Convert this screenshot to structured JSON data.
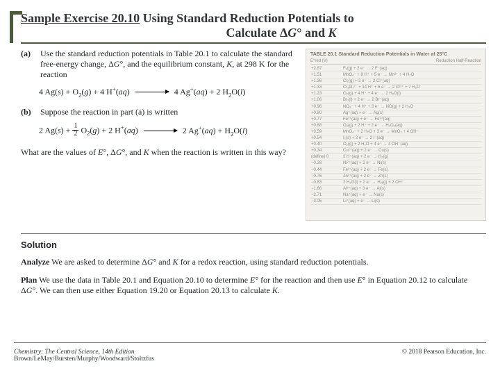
{
  "colors": {
    "accent_green": "#4a5a3a",
    "text": "#1e232a",
    "table_bg": "#f2f1ee",
    "table_border": "#d7d4cc",
    "rule": "#6d6d6d"
  },
  "title": {
    "prefix": "Sample Exercise 20.10",
    "rest_line1": " Using Standard Reduction Potentials to",
    "line2": "Calculate ΔG° and K"
  },
  "part_a": {
    "label": "(a)",
    "text": "Use the standard reduction potentials in Table 20.1 to calculate the standard free-energy change, ΔG°, and the equilibrium constant, K, at 298 K for the reaction"
  },
  "eqn_a": {
    "lhs": "4 Ag(s) + O₂(g) + 4 H⁺(aq)",
    "rhs": "4 Ag⁺(aq) + 2 H₂O(l)"
  },
  "part_b": {
    "label": "(b)",
    "text": "Suppose the reaction in part (a) is written"
  },
  "eqn_b": {
    "lhs_before_frac": "2 Ag(s) + ",
    "frac_num": "1",
    "frac_den": "2",
    "lhs_after_frac": " O₂(g) + 2 H⁺(aq)",
    "rhs": "2 Ag⁺(aq) + H₂O(l)"
  },
  "question_tail": "What are the values of E°, ΔG°, and K when the reaction is written in this way?",
  "solution": {
    "heading": "Solution",
    "analyze_label": "Analyze",
    "analyze_text": " We are asked to determine ΔG° and K for a redox reaction, using standard reduction potentials.",
    "plan_label": "Plan",
    "plan_text": " We use the data in Table 20.1 and Equation 20.10 to determine E° for the reaction and then use E° in Equation 20.12 to calculate ΔG°. We can then use either Equation 19.20 or Equation 20.13 to calculate K."
  },
  "table": {
    "caption": "TABLE 20.1   Standard Reduction Potentials in Water at 25°C",
    "col1": "E°red (V)",
    "col2": "Reduction Half-Reaction",
    "rows": [
      [
        "+2.87",
        "F₂(g) + 2 e⁻ → 2 F⁻(aq)"
      ],
      [
        "+1.51",
        "MnO₄⁻ + 8 H⁺ + 5 e⁻ → Mn²⁺ + 4 H₂O"
      ],
      [
        "+1.36",
        "Cl₂(g) + 2 e⁻ → 2 Cl⁻(aq)"
      ],
      [
        "+1.33",
        "Cr₂O₇²⁻ + 14 H⁺ + 6 e⁻ → 2 Cr³⁺ + 7 H₂O"
      ],
      [
        "+1.23",
        "O₂(g) + 4 H⁺ + 4 e⁻ → 2 H₂O(l)"
      ],
      [
        "+1.06",
        "Br₂(l) + 2 e⁻ → 2 Br⁻(aq)"
      ],
      [
        "+0.96",
        "NO₃⁻ + 4 H⁺ + 3 e⁻ → NO(g) + 2 H₂O"
      ],
      [
        "+0.80",
        "Ag⁺(aq) + e⁻ → Ag(s)"
      ],
      [
        "+0.77",
        "Fe³⁺(aq) + e⁻ → Fe²⁺(aq)"
      ],
      [
        "+0.68",
        "O₂(g) + 2 H⁺ + 2 e⁻ → H₂O₂(aq)"
      ],
      [
        "+0.59",
        "MnO₄⁻ + 2 H₂O + 3 e⁻ → MnO₂ + 4 OH⁻"
      ],
      [
        "+0.54",
        "I₂(s) + 2 e⁻ → 2 I⁻(aq)"
      ],
      [
        "+0.40",
        "O₂(g) + 2 H₂O + 4 e⁻ → 4 OH⁻(aq)"
      ],
      [
        "+0.34",
        "Cu²⁺(aq) + 2 e⁻ → Cu(s)"
      ],
      [
        "  (define)  0",
        "2 H⁺(aq) + 2 e⁻ → H₂(g)"
      ],
      [
        "−0.28",
        "Ni²⁺(aq) + 2 e⁻ → Ni(s)"
      ],
      [
        "−0.44",
        "Fe²⁺(aq) + 2 e⁻ → Fe(s)"
      ],
      [
        "−0.76",
        "Zn²⁺(aq) + 2 e⁻ → Zn(s)"
      ],
      [
        "−0.83",
        "2 H₂O(l) + 2 e⁻ → H₂(g) + 2 OH⁻"
      ],
      [
        "−1.66",
        "Al³⁺(aq) + 3 e⁻ → Al(s)"
      ],
      [
        "−2.71",
        "Na⁺(aq) + e⁻ → Na(s)"
      ],
      [
        "−3.05",
        "Li⁺(aq) + e⁻ → Li(s)"
      ]
    ]
  },
  "footer": {
    "left_line1": "Chemistry: The Central Science, 14th Edition",
    "left_line2": "Brown/LeMay/Bursten/Murphy/Woodward/Stoltzfus",
    "right": "© 2018 Pearson Education, Inc."
  }
}
